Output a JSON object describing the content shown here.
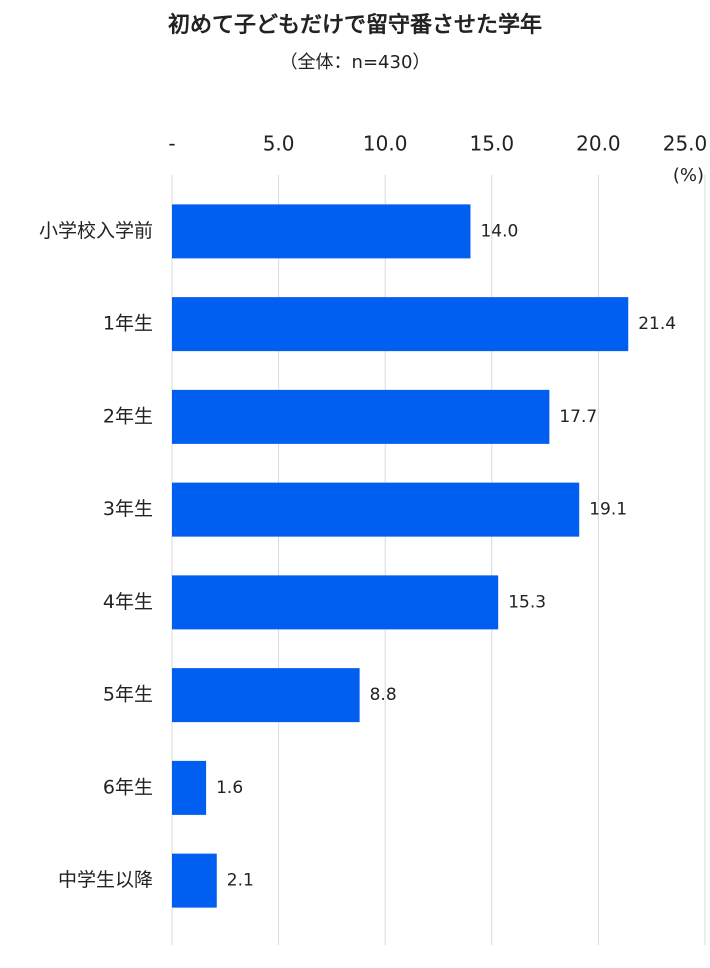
{
  "chart_data": {
    "type": "barh",
    "title": "初めて子どもだけで留守番させた学年",
    "subtitle": "（全体：n=430）",
    "xlabel": "(%)",
    "categories": [
      "小学校入学前",
      "1年生",
      "2年生",
      "3年生",
      "4年生",
      "5年生",
      "6年生",
      "中学生以降"
    ],
    "values": [
      14.0,
      21.4,
      17.7,
      19.1,
      15.3,
      8.8,
      1.6,
      2.1
    ],
    "value_labels": [
      "14.0",
      "21.4",
      "17.7",
      "19.1",
      "15.3",
      "8.8",
      "1.6",
      "2.1"
    ],
    "color": "#005ef0",
    "xlim": [
      0,
      25
    ],
    "xticks": [
      {
        "value": 0,
        "label": "-"
      },
      {
        "value": 5,
        "label": "5.0"
      },
      {
        "value": 10,
        "label": "10.0"
      },
      {
        "value": 15,
        "label": "15.0"
      },
      {
        "value": 20,
        "label": "20.0"
      },
      {
        "value": 25,
        "label": "25.0"
      }
    ],
    "grid": true
  }
}
